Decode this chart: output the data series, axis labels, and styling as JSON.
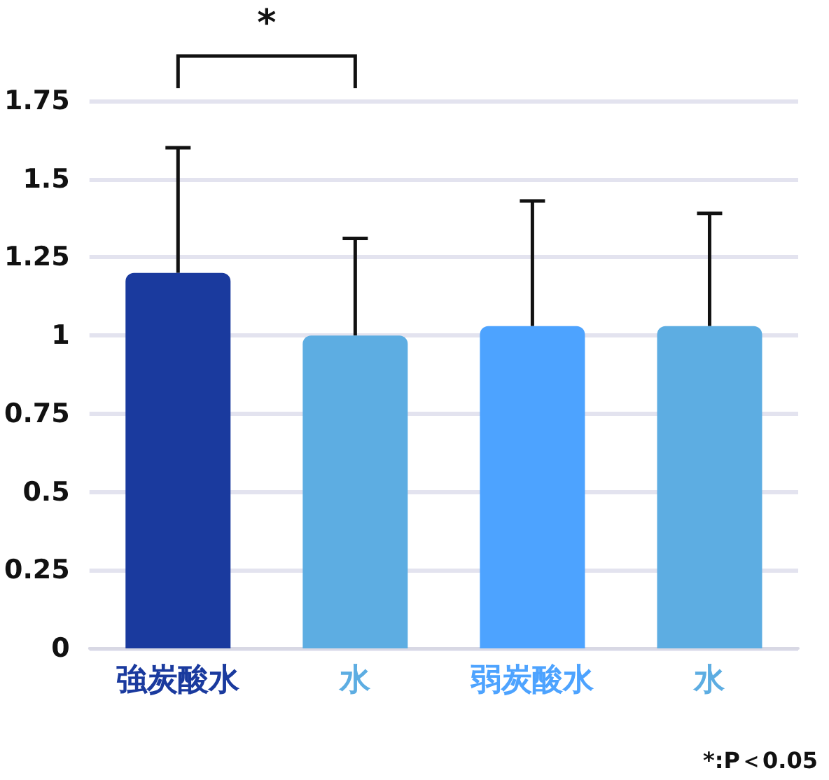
{
  "chart_data": {
    "type": "bar",
    "categories": [
      "強炭酸水",
      "水",
      "弱炭酸水",
      "水"
    ],
    "values": [
      1.2,
      1.0,
      1.03,
      1.03
    ],
    "colors": [
      "#1a3a9e",
      "#5dade2",
      "#4da3ff",
      "#5dade2"
    ],
    "errors": [
      [
        1.2,
        1.6
      ],
      [
        1.0,
        1.31
      ],
      [
        1.03,
        1.43
      ],
      [
        1.03,
        1.39
      ]
    ],
    "ylim": [
      0,
      1.75
    ],
    "yticks": [
      0,
      0.25,
      0.5,
      0.75,
      1,
      1.25,
      1.5,
      1.75
    ],
    "grid": "y",
    "annotations": [
      "*",
      "*:P＜0.05"
    ]
  }
}
